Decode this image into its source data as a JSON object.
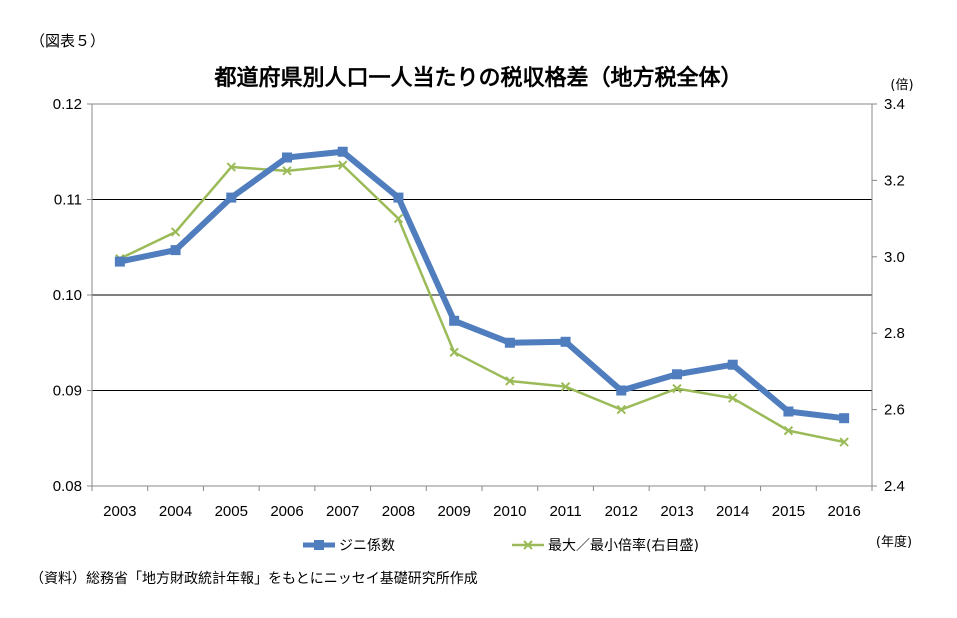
{
  "header": {
    "figure_label": "（図表５）",
    "title": "都道府県別人口一人当たりの税収格差（地方税全体）"
  },
  "source_note": "（資料）総務省「地方財政統計年報」をもとにニッセイ基礎研究所作成",
  "chart_data": {
    "type": "line",
    "categories": [
      "2003",
      "2004",
      "2005",
      "2006",
      "2007",
      "2008",
      "2009",
      "2010",
      "2011",
      "2012",
      "2013",
      "2014",
      "2015",
      "2016"
    ],
    "xlabel": "(年度)",
    "y_left": {
      "range": [
        0.08,
        0.12
      ],
      "ticks": [
        "0.08",
        "0.09",
        "0.10",
        "0.11",
        "0.12"
      ]
    },
    "y_right": {
      "range": [
        2.4,
        3.4
      ],
      "ticks": [
        "2.4",
        "2.6",
        "2.8",
        "3.0",
        "3.2",
        "3.4"
      ],
      "unit": "(倍)"
    },
    "grid": "horizontal",
    "legend_position": "bottom",
    "series": [
      {
        "name": "ジニ係数",
        "axis": "left",
        "color": "#4F7DBD",
        "marker": "square",
        "values": [
          0.1035,
          0.1047,
          0.1102,
          0.1144,
          0.115,
          0.1102,
          0.0973,
          0.095,
          0.0951,
          0.09,
          0.0917,
          0.0927,
          0.0878,
          0.0871
        ]
      },
      {
        "name": "最大／最小倍率(右目盛)",
        "axis": "right",
        "color": "#9BBB59",
        "marker": "x",
        "values": [
          2.995,
          3.065,
          3.235,
          3.225,
          3.24,
          3.1,
          2.75,
          2.675,
          2.66,
          2.6,
          2.655,
          2.63,
          2.545,
          2.515
        ]
      }
    ]
  }
}
